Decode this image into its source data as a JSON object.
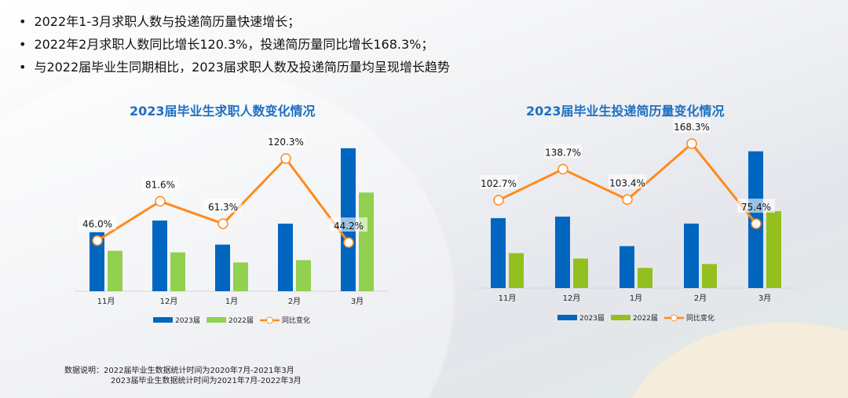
{
  "bullets": [
    "2022年1-3月求职人数与投递简历量快速增长；",
    "2022年2月求职人数同比增长120.3%，投递简历量同比增长168.3%；",
    "与2022届毕业生同期相比，2023届求职人数及投递简历量均呈现增长趋势"
  ],
  "chart_data": [
    {
      "type": "bar",
      "title": "2023届毕业生求职人数变化情况",
      "categories": [
        "11月",
        "12月",
        "1月",
        "2月",
        "3月"
      ],
      "series": [
        {
          "name": "2023届",
          "type": "bar",
          "color": "#0066bf",
          "values": [
            76,
            91,
            60,
            87,
            184
          ]
        },
        {
          "name": "2022届",
          "type": "bar",
          "color": "#92d050",
          "values": [
            52,
            50,
            37,
            40,
            127
          ]
        },
        {
          "name": "同比变化",
          "type": "line",
          "color": "#ff8a1c",
          "values": [
            46.0,
            81.6,
            61.3,
            120.3,
            44.2
          ],
          "labels": [
            "46.0%",
            "81.6%",
            "61.3%",
            "120.3%",
            "44.2%"
          ]
        }
      ],
      "legend": "bottom",
      "grid": false
    },
    {
      "type": "bar",
      "title": "2023届毕业生投递简历量变化情况",
      "categories": [
        "11月",
        "12月",
        "1月",
        "2月",
        "3月"
      ],
      "series": [
        {
          "name": "2023届",
          "type": "bar",
          "color": "#0066bf",
          "values": [
            90,
            92,
            54,
            83,
            176
          ]
        },
        {
          "name": "2022届",
          "type": "bar",
          "color": "#93c01f",
          "values": [
            45,
            38,
            26,
            31,
            99
          ]
        },
        {
          "name": "同比变化",
          "type": "line",
          "color": "#ff8a1c",
          "values": [
            102.7,
            138.7,
            103.4,
            168.3,
            75.4
          ],
          "labels": [
            "102.7%",
            "138.7%",
            "103.4%",
            "168.3%",
            "75.4%"
          ]
        }
      ],
      "legend": "bottom",
      "grid": false
    }
  ],
  "note": {
    "label": "数据说明：",
    "line1": "2022届毕业生数据统计时间为2020年7月-2021年3月",
    "line2": "2023届毕业生数据统计时间为2021年7月-2022年3月"
  }
}
